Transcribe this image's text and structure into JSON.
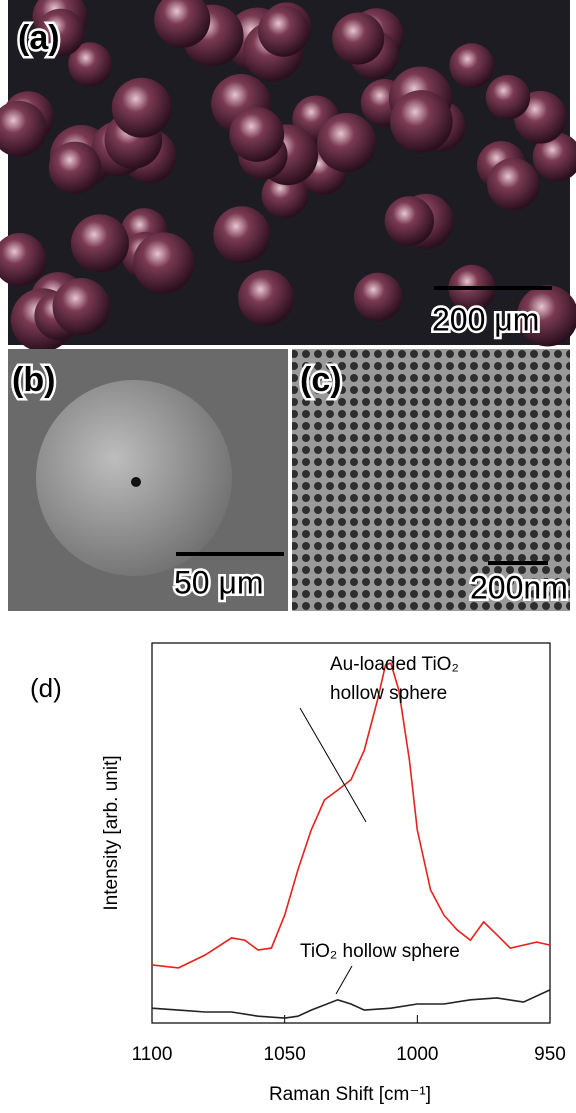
{
  "panels": [
    {
      "label": "(a)",
      "scale": "200 μm"
    },
    {
      "label": "(b)",
      "scale": "50 μm"
    },
    {
      "label": "(c)",
      "scale": "200nm"
    }
  ],
  "chart_data": {
    "type": "line",
    "panel_label": "(d)",
    "x_label": "Raman Shift [cm⁻¹]",
    "y_label": "Intensity [arb. unit]",
    "xlim": [
      1100,
      950
    ],
    "xticks": [
      1100,
      1050,
      1000,
      950
    ],
    "ylim": [
      0,
      100
    ],
    "annotations": [
      {
        "lines": [
          "Au-loaded TiO₂",
          "hollow sphere"
        ]
      },
      {
        "lines": [
          "TiO₂ hollow sphere"
        ]
      }
    ],
    "series": [
      {
        "color": "#e8211c",
        "x": [
          1100,
          1090,
          1080,
          1070,
          1065,
          1060,
          1055,
          1050,
          1045,
          1040,
          1035,
          1030,
          1025,
          1020,
          1015,
          1012,
          1010,
          1007,
          1003,
          1000,
          995,
          990,
          985,
          980,
          975,
          970,
          965,
          960,
          955,
          950
        ],
        "values": [
          15.3,
          14.5,
          17.9,
          22.4,
          21.8,
          19.2,
          19.7,
          28.4,
          40.3,
          50.8,
          58.7,
          61.3,
          64,
          71.8,
          85,
          94.2,
          94.7,
          87.6,
          69.2,
          50.8,
          35,
          28.4,
          24.5,
          21.8,
          26.6,
          23.2,
          19.7,
          20.5,
          21.3,
          20.5
        ]
      },
      {
        "color": "#222222",
        "x": [
          1100,
          1090,
          1080,
          1070,
          1060,
          1050,
          1045,
          1040,
          1030,
          1025,
          1020,
          1010,
          1000,
          990,
          980,
          970,
          960,
          950
        ],
        "values": [
          3.9,
          3.4,
          2.9,
          2.9,
          1.8,
          1.3,
          1.8,
          3.4,
          6.1,
          5,
          3.4,
          3.9,
          5,
          5,
          6.1,
          6.6,
          5.5,
          8.7
        ]
      }
    ]
  }
}
